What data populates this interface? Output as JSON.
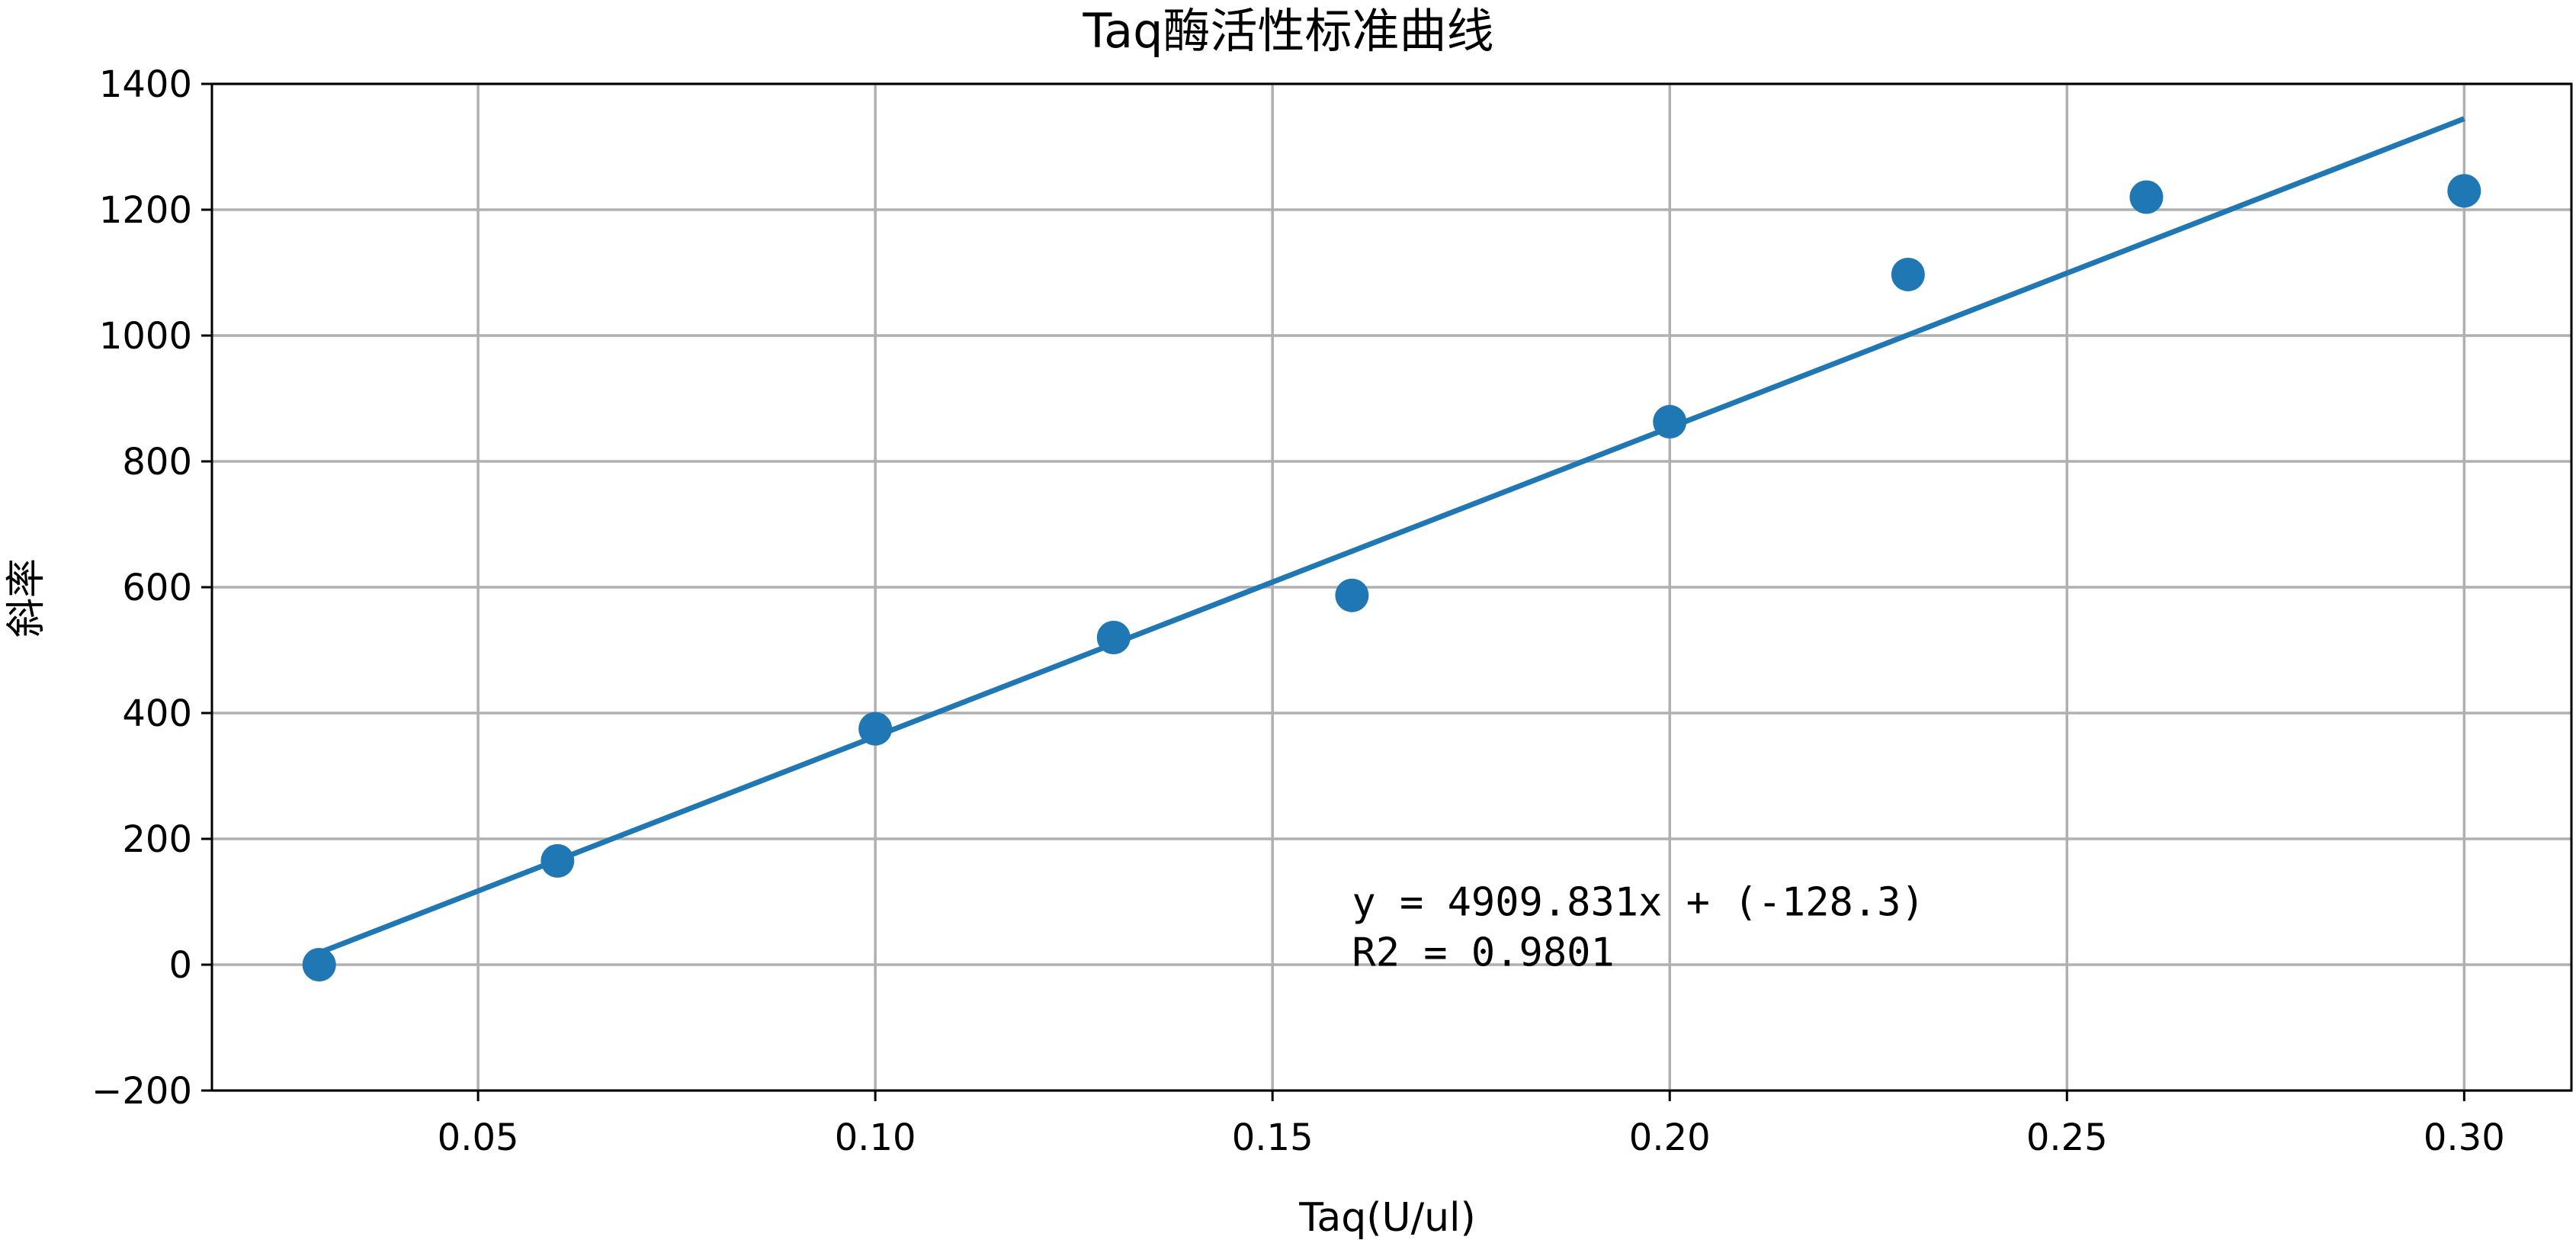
{
  "chart_data": {
    "type": "scatter",
    "title": "Taq酶活性标准曲线",
    "xlabel": "Taq(U/ul)",
    "ylabel": "斜率",
    "xlim": [
      0.0165,
      0.3135
    ],
    "ylim": [
      -200,
      1400
    ],
    "xticks": [
      0.05,
      0.1,
      0.15,
      0.2,
      0.25,
      0.3
    ],
    "xtick_labels": [
      "0.05",
      "0.10",
      "0.15",
      "0.20",
      "0.25",
      "0.30"
    ],
    "yticks": [
      -200,
      0,
      200,
      400,
      600,
      800,
      1000,
      1200,
      1400
    ],
    "ytick_labels": [
      "−200",
      "0",
      "200",
      "400",
      "600",
      "800",
      "1000",
      "1200",
      "1400"
    ],
    "grid": true,
    "colors": {
      "series": "#1f77b4",
      "grid": "#b0b0b0",
      "axis": "#000000"
    },
    "series": [
      {
        "name": "data",
        "kind": "scatter",
        "x": [
          0.03,
          0.06,
          0.1,
          0.13,
          0.16,
          0.2,
          0.23,
          0.26,
          0.3
        ],
        "y": [
          0,
          165,
          375,
          520,
          587,
          863,
          1097,
          1220,
          1230
        ]
      },
      {
        "name": "fit",
        "kind": "line",
        "slope": 4909.831,
        "intercept": -128.3,
        "x_range": [
          0.03,
          0.3
        ]
      }
    ],
    "annotations": [
      {
        "id": "equation",
        "text": "y = 4909.831x + (-128.3)",
        "x": 0.16,
        "y": 100
      },
      {
        "id": "r2",
        "text": "R2 = 0.9801",
        "x": 0.16,
        "y": 20
      }
    ]
  }
}
